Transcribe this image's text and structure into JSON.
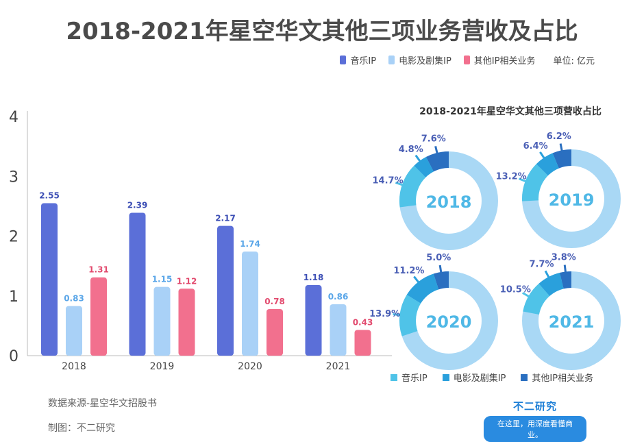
{
  "title": "2018-2021年星空华文其他三项业务营收及占比",
  "legend": {
    "items": [
      {
        "label": "音乐IP",
        "color": "#5b6fd8"
      },
      {
        "label": "电影及剧集IP",
        "color": "#a9d1f7"
      },
      {
        "label": "其他IP相关业务",
        "color": "#f2708e"
      }
    ],
    "unit": "单位: 亿元"
  },
  "donut_section": {
    "title": "2018-2021年星空华文其他三项营收占比",
    "legend": [
      {
        "label": "音乐IP",
        "color": "#4fc3e8"
      },
      {
        "label": "电影及剧集IP",
        "color": "#2aa0dc"
      },
      {
        "label": "其他IP相关业务",
        "color": "#2a6fc0"
      }
    ]
  },
  "footer": {
    "source": "数据来源-星空华文招股书",
    "maker": "制图：不二研究"
  },
  "brand": {
    "name": "不二研究",
    "slogan": "在这里，用深度看懂商业。"
  },
  "chart_data": [
    {
      "type": "bar",
      "title": "2018-2021年星空华文其他三项业务营收及占比",
      "categories": [
        "2018",
        "2019",
        "2020",
        "2021"
      ],
      "series": [
        {
          "name": "音乐IP",
          "color": "#5b6fd8",
          "label_color": "#3d4fb5",
          "values": [
            2.55,
            2.39,
            2.17,
            1.18
          ]
        },
        {
          "name": "电影及剧集IP",
          "color": "#a9d1f7",
          "label_color": "#5aa6e8",
          "values": [
            0.83,
            1.15,
            1.74,
            0.86
          ]
        },
        {
          "name": "其他IP相关业务",
          "color": "#f2708e",
          "label_color": "#e24a6e",
          "values": [
            1.31,
            1.12,
            0.78,
            0.43
          ]
        }
      ],
      "yticks": [
        "0",
        "1",
        "2",
        "3",
        "4"
      ],
      "ylim": [
        0,
        4
      ],
      "ylabel": "",
      "xlabel": "",
      "unit": "亿元"
    },
    {
      "type": "pie",
      "title": "2018-2021年星空华文其他三项营收占比",
      "series_names": [
        "音乐IP",
        "电影及剧集IP",
        "其他IP相关业务"
      ],
      "donuts": [
        {
          "year": "2018",
          "music": 14.7,
          "film": 4.8,
          "other": 7.6
        },
        {
          "year": "2019",
          "music": 13.2,
          "film": 6.4,
          "other": 6.2
        },
        {
          "year": "2020",
          "music": 13.9,
          "film": 11.2,
          "other": 5.0
        },
        {
          "year": "2021",
          "music": 10.5,
          "film": 7.7,
          "other": 3.8
        }
      ],
      "labels": {
        "2018": [
          "14.7%",
          "4.8%",
          "7.6%"
        ],
        "2019": [
          "13.2%",
          "6.4%",
          "6.2%"
        ],
        "2020": [
          "13.9%",
          "11.2%",
          "5.0%"
        ],
        "2021": [
          "10.5%",
          "7.7%",
          "3.8%"
        ]
      }
    }
  ]
}
